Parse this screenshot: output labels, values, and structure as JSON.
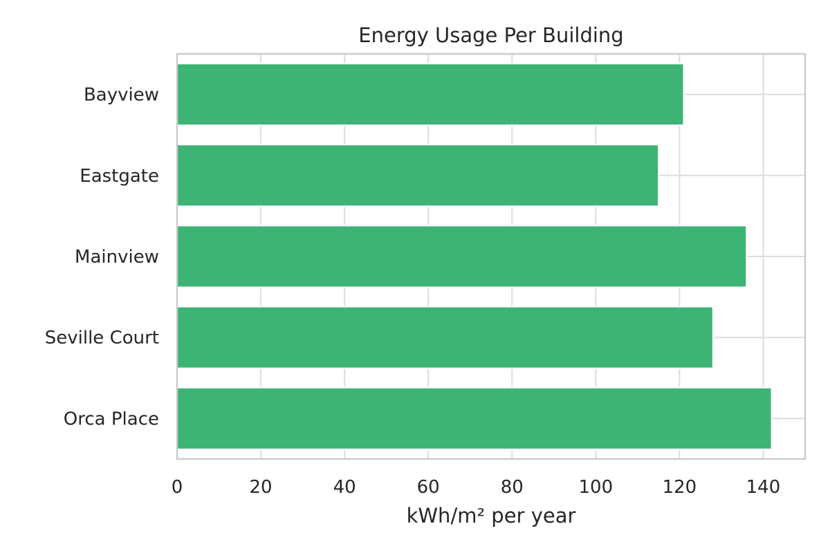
{
  "chart_data": {
    "type": "bar",
    "orientation": "horizontal",
    "title": "Energy Usage Per Building",
    "xlabel": "kWh/m² per year",
    "ylabel": "",
    "categories": [
      "Bayview",
      "Eastgate",
      "Mainview",
      "Seville Court",
      "Orca Place"
    ],
    "values": [
      121,
      115,
      136,
      128,
      142
    ],
    "xlim": [
      0,
      150
    ],
    "xticks": [
      0,
      20,
      40,
      60,
      80,
      100,
      120,
      140
    ],
    "grid": true,
    "legend": "none",
    "bar_color": "#3db474",
    "grid_color": "#dddddd",
    "frame_color": "#cccccc"
  }
}
